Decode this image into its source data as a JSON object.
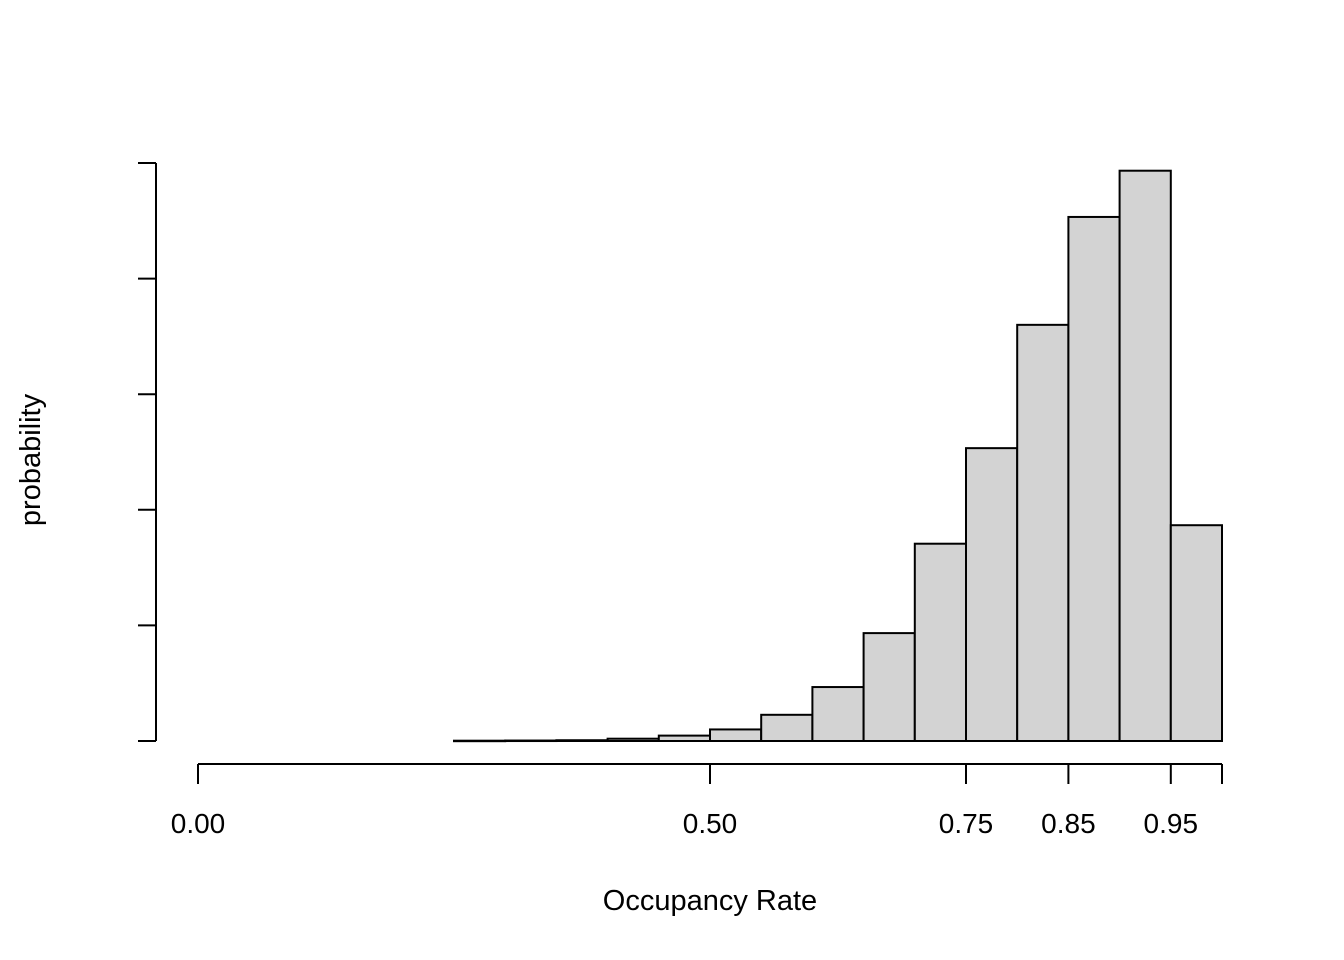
{
  "chart_data": {
    "type": "bar",
    "title": "",
    "xlabel": "Occupancy Rate",
    "ylabel": "probability",
    "bin_width": 0.05,
    "bin_starts": [
      0.25,
      0.3,
      0.35,
      0.4,
      0.45,
      0.5,
      0.55,
      0.6,
      0.65,
      0.7,
      0.75,
      0.8,
      0.85,
      0.9,
      0.95
    ],
    "values": [
      0.0002,
      0.0003,
      0.0005,
      0.0015,
      0.0035,
      0.0075,
      0.017,
      0.035,
      0.07,
      0.128,
      0.19,
      0.27,
      0.34,
      0.37,
      0.14
    ],
    "xlim": [
      0,
      1
    ],
    "ylim": [
      0,
      0.375
    ],
    "y_ticks": [
      0,
      0.075,
      0.15,
      0.225,
      0.3,
      0.375
    ],
    "y_tick_labels_shown": false,
    "x_ticks": [
      0.0,
      0.5,
      0.75,
      0.85,
      0.95,
      1.0
    ],
    "x_tick_labels": [
      "0.00",
      "0.50",
      "0.75",
      "0.85",
      "0.95",
      ""
    ],
    "grid": false,
    "legend": "none",
    "colors": {
      "bar_fill": "#d3d3d3",
      "bar_stroke": "#000000",
      "axis": "#000000"
    }
  }
}
